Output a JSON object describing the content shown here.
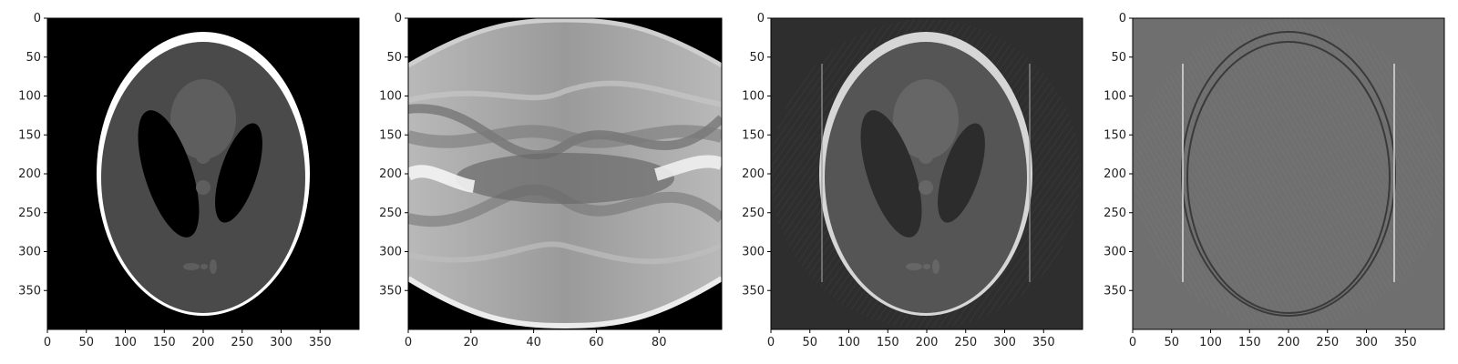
{
  "panels": [
    {
      "id": "phantom",
      "content": "shepp-logan-phantom",
      "background": "#000000",
      "x_ticks": [
        "0",
        "50",
        "100",
        "150",
        "200",
        "250",
        "300",
        "350"
      ],
      "y_ticks": [
        "0",
        "50",
        "100",
        "150",
        "200",
        "250",
        "300",
        "350"
      ]
    },
    {
      "id": "sinogram",
      "content": "radon-sinogram",
      "background": "#000000",
      "x_ticks": [
        "0",
        "20",
        "40",
        "60",
        "80"
      ],
      "y_ticks": [
        "0",
        "50",
        "100",
        "150",
        "200",
        "250",
        "300",
        "350"
      ]
    },
    {
      "id": "reconstruction",
      "content": "filtered-back-projection",
      "background": "#2e2e2e",
      "x_ticks": [
        "0",
        "50",
        "100",
        "150",
        "200",
        "250",
        "300",
        "350"
      ],
      "y_ticks": [
        "0",
        "50",
        "100",
        "150",
        "200",
        "250",
        "300",
        "350"
      ]
    },
    {
      "id": "error",
      "content": "reconstruction-error",
      "background": "#6f6f6f",
      "x_ticks": [
        "0",
        "50",
        "100",
        "150",
        "200",
        "250",
        "300",
        "350"
      ],
      "y_ticks": [
        "0",
        "50",
        "100",
        "150",
        "200",
        "250",
        "300",
        "350"
      ]
    }
  ]
}
